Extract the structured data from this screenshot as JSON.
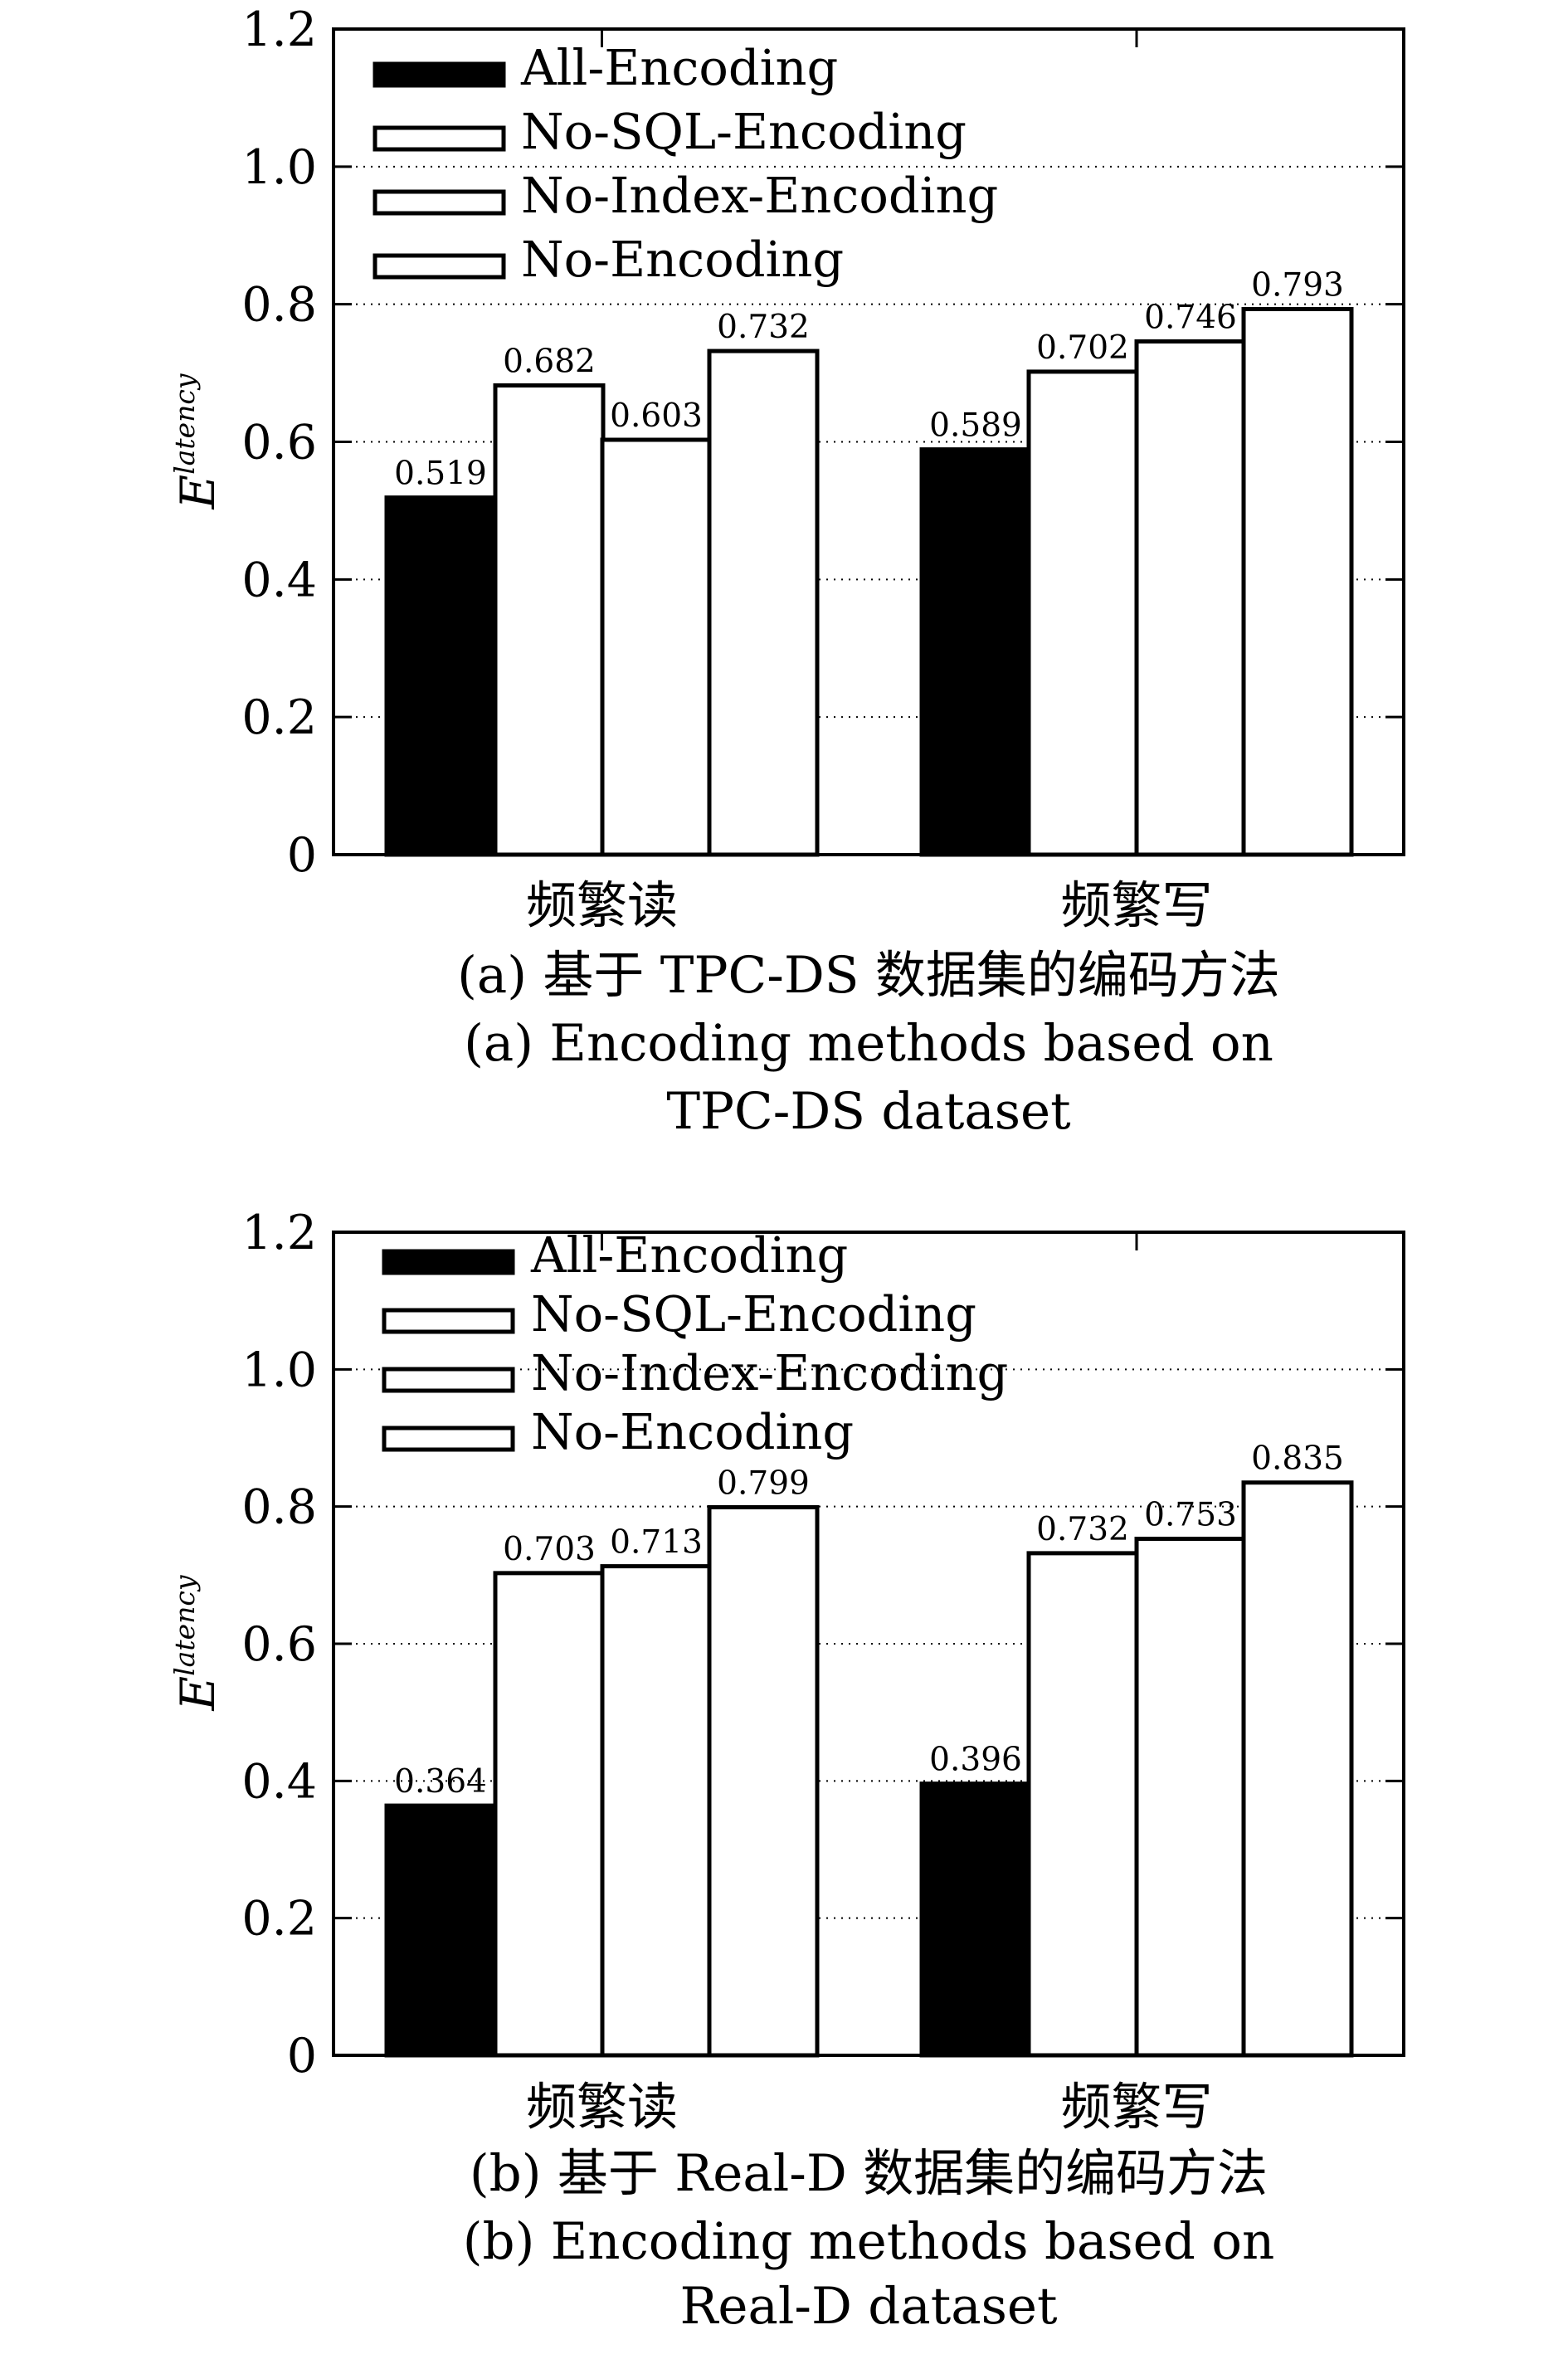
{
  "chart_data": [
    {
      "type": "bar",
      "categories": [
        "频繁读",
        "频繁写"
      ],
      "series": [
        {
          "name": "All-Encoding",
          "values": [
            0.519,
            0.589
          ]
        },
        {
          "name": "No-SQL-Encoding",
          "values": [
            0.682,
            0.702
          ]
        },
        {
          "name": "No-Index-Encoding",
          "values": [
            0.603,
            0.746
          ]
        },
        {
          "name": "No-Encoding",
          "values": [
            0.732,
            0.793
          ]
        }
      ],
      "value_labels": [
        [
          "0.519",
          "0.589"
        ],
        [
          "0.682",
          "0.702"
        ],
        [
          "0.603",
          "0.746"
        ],
        [
          "0.732",
          "0.793"
        ]
      ],
      "ylim": [
        0,
        1.2
      ],
      "yticks": [
        0,
        0.2,
        0.4,
        0.6,
        0.8,
        1.0,
        1.2
      ],
      "ytick_labels": [
        "0",
        "0.2",
        "0.4",
        "0.6",
        "0.8",
        "1.0",
        "1.2"
      ],
      "ylabel": "E",
      "ylabel_superscript": "latency",
      "grid": "horizontal dotted",
      "legend_position": "top-left",
      "colors": {
        "All-Encoding": "#000000",
        "No-SQL-Encoding": "#ffffff",
        "No-Index-Encoding": "#ffffff",
        "No-Encoding": "#ffffff"
      },
      "caption_lines": [
        "(a) 基于 TPC-DS 数据集的编码方法",
        "(a) Encoding methods based on",
        "TPC-DS dataset"
      ]
    },
    {
      "type": "bar",
      "categories": [
        "频繁读",
        "频繁写"
      ],
      "series": [
        {
          "name": "All-Encoding",
          "values": [
            0.364,
            0.396
          ]
        },
        {
          "name": "No-SQL-Encoding",
          "values": [
            0.703,
            0.732
          ]
        },
        {
          "name": "No-Index-Encoding",
          "values": [
            0.713,
            0.753
          ]
        },
        {
          "name": "No-Encoding",
          "values": [
            0.799,
            0.835
          ]
        }
      ],
      "value_labels": [
        [
          "0.364",
          "0.396"
        ],
        [
          "0.703",
          "0.732"
        ],
        [
          "0.713",
          "0.753"
        ],
        [
          "0.799",
          "0.835"
        ]
      ],
      "ylim": [
        0,
        1.2
      ],
      "yticks": [
        0,
        0.2,
        0.4,
        0.6,
        0.8,
        1.0,
        1.2
      ],
      "ytick_labels": [
        "0",
        "0.2",
        "0.4",
        "0.6",
        "0.8",
        "1.0",
        "1.2"
      ],
      "ylabel": "E",
      "ylabel_superscript": "latency",
      "grid": "horizontal dotted",
      "legend_position": "top-left",
      "colors": {
        "All-Encoding": "#000000",
        "No-SQL-Encoding": "#ffffff",
        "No-Index-Encoding": "#ffffff",
        "No-Encoding": "#ffffff"
      },
      "caption_lines": [
        "(b) 基于 Real-D 数据集的编码方法",
        "(b) Encoding methods based on",
        "Real-D dataset"
      ]
    }
  ]
}
